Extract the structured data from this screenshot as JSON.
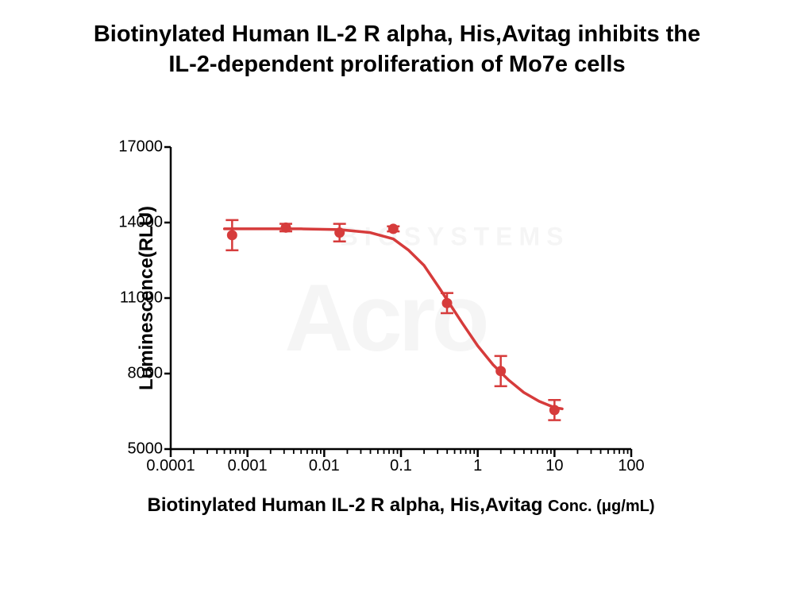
{
  "title_line1": "Biotinylated Human IL-2 R alpha, His,Avitag inhibits the",
  "title_line2": "IL-2-dependent proliferation of Mo7e cells",
  "title_fontsize": 29,
  "title_color": "#000000",
  "chart": {
    "type": "line-scatter-dose-response",
    "background_color": "#ffffff",
    "axis_color": "#000000",
    "axis_width": 2.5,
    "ylabel": "Luminescence(RLU)",
    "ylabel_fontsize": 24,
    "xlabel_main": "Biotinylated Human IL-2 R alpha, His,Avitag ",
    "xlabel_sub": "Conc. (μg/mL)",
    "xlabel_fontsize_main": 24,
    "xlabel_fontsize_sub": 20,
    "ylim": [
      5000,
      17000
    ],
    "yticks": [
      5000,
      8000,
      11000,
      14000,
      17000
    ],
    "ytick_labels": [
      "5000",
      "8000",
      "11000",
      "14000",
      "17000"
    ],
    "ytick_fontsize": 20,
    "xscale": "log10",
    "xlim_log": [
      -4,
      2
    ],
    "xtick_labels": [
      "0.0001",
      "0.001",
      "0.01",
      "0.1",
      "1",
      "10",
      "100"
    ],
    "xtick_log_positions": [
      -4,
      -3,
      -2,
      -1,
      0,
      1,
      2
    ],
    "xtick_fontsize": 20,
    "series_color": "#d63b3b",
    "line_width": 3.5,
    "marker_radius": 6.5,
    "errorbar_width": 2.5,
    "errorbar_cap": 8,
    "data_points": [
      {
        "x_log": -3.2,
        "y": 13500,
        "err": 600
      },
      {
        "x_log": -2.5,
        "y": 13800,
        "err": 150
      },
      {
        "x_log": -1.8,
        "y": 13600,
        "err": 350
      },
      {
        "x_log": -1.1,
        "y": 13750,
        "err": 100
      },
      {
        "x_log": -0.4,
        "y": 10800,
        "err": 400
      },
      {
        "x_log": 0.3,
        "y": 8100,
        "err": 600
      },
      {
        "x_log": 1.0,
        "y": 6550,
        "err": 400
      }
    ],
    "curve": [
      {
        "x_log": -3.3,
        "y": 13750
      },
      {
        "x_log": -2.8,
        "y": 13750
      },
      {
        "x_log": -2.3,
        "y": 13750
      },
      {
        "x_log": -1.8,
        "y": 13720
      },
      {
        "x_log": -1.4,
        "y": 13600
      },
      {
        "x_log": -1.1,
        "y": 13350
      },
      {
        "x_log": -0.9,
        "y": 12900
      },
      {
        "x_log": -0.7,
        "y": 12300
      },
      {
        "x_log": -0.5,
        "y": 11400
      },
      {
        "x_log": -0.35,
        "y": 10700
      },
      {
        "x_log": -0.2,
        "y": 10000
      },
      {
        "x_log": 0.0,
        "y": 9100
      },
      {
        "x_log": 0.2,
        "y": 8350
      },
      {
        "x_log": 0.4,
        "y": 7750
      },
      {
        "x_log": 0.6,
        "y": 7250
      },
      {
        "x_log": 0.8,
        "y": 6900
      },
      {
        "x_log": 1.0,
        "y": 6650
      },
      {
        "x_log": 1.1,
        "y": 6600
      }
    ],
    "log_minor_fracs": [
      0.301,
      0.477,
      0.602,
      0.699,
      0.778,
      0.845,
      0.903,
      0.954
    ]
  },
  "watermark_main": "Acro",
  "watermark_sub": "BIOSYSTEMS"
}
